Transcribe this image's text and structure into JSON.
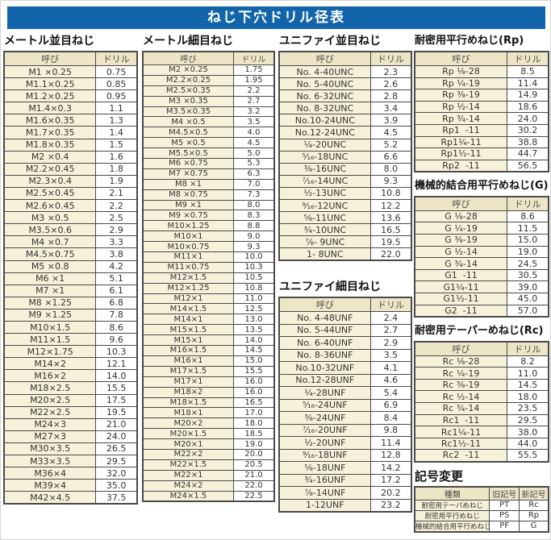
{
  "page_title": "ねじ下穴ドリル径表",
  "colors": {
    "title_bar": "#1365ab",
    "title_text": "#ffffff",
    "cell_cream": "#f6f2da",
    "header_cream": "#ece5c6",
    "cell_white": "#ffffff",
    "border": "#4a4a4a"
  },
  "sections": {
    "metric_coarse": {
      "title": "メートル並目ねじ",
      "headers": [
        "呼び",
        "ドリル"
      ],
      "rows": [
        [
          "M1 ×0.25",
          "0.75"
        ],
        [
          "M1.1×0.25",
          "0.85"
        ],
        [
          "M1.2×0.25",
          "0.95"
        ],
        [
          "M1.4×0.3",
          "1.1"
        ],
        [
          "M1.6×0.35",
          "1.3"
        ],
        [
          "M1.7×0.35",
          "1.4"
        ],
        [
          "M1.8×0.35",
          "1.5"
        ],
        [
          "M2 ×0.4",
          "1.6"
        ],
        [
          "M2.2×0.45",
          "1.8"
        ],
        [
          "M2.3×0.4",
          "1.9"
        ],
        [
          "M2.5×0.45",
          "2.1"
        ],
        [
          "M2.6×0.45",
          "2.2"
        ],
        [
          "M3 ×0.5",
          "2.5"
        ],
        [
          "M3.5×0.6",
          "2.9"
        ],
        [
          "M4 ×0.7",
          "3.3"
        ],
        [
          "M4.5×0.75",
          "3.8"
        ],
        [
          "M5 ×0.8",
          "4.2"
        ],
        [
          "M6 ×1",
          "5.1"
        ],
        [
          "M7 ×1",
          "6.1"
        ],
        [
          "M8 ×1.25",
          "6.8"
        ],
        [
          "M9 ×1.25",
          "7.8"
        ],
        [
          "M10×1.5",
          "8.6"
        ],
        [
          "M11×1.5",
          "9.6"
        ],
        [
          "M12×1.75",
          "10.3"
        ],
        [
          "M14×2",
          "12.1"
        ],
        [
          "M16×2",
          "14.0"
        ],
        [
          "M18×2.5",
          "15.5"
        ],
        [
          "M20×2.5",
          "17.5"
        ],
        [
          "M22×2.5",
          "19.5"
        ],
        [
          "M24×3",
          "21.0"
        ],
        [
          "M27×3",
          "24.0"
        ],
        [
          "M30×3.5",
          "26.5"
        ],
        [
          "M33×3.5",
          "29.5"
        ],
        [
          "M36×4",
          "32.0"
        ],
        [
          "M39×4",
          "35.0"
        ],
        [
          "M42×4.5",
          "37.5"
        ]
      ]
    },
    "metric_fine": {
      "title": "メートル細目ねじ",
      "headers": [
        "呼び",
        "ドリル"
      ],
      "rows": [
        [
          "M2 ×0.25",
          "1.75"
        ],
        [
          "M2.2×0.25",
          "1.95"
        ],
        [
          "M2.5×0.35",
          "2.2"
        ],
        [
          "M3 ×0.35",
          "2.7"
        ],
        [
          "M3.5×0.35",
          "3.2"
        ],
        [
          "M4 ×0.5",
          "3.5"
        ],
        [
          "M4.5×0.5",
          "4.0"
        ],
        [
          "M5 ×0.5",
          "4.5"
        ],
        [
          "M5.5×0.5",
          "5.0"
        ],
        [
          "M6 ×0.75",
          "5.3"
        ],
        [
          "M7 ×0.75",
          "6.3"
        ],
        [
          "M8 ×1",
          "7.0"
        ],
        [
          "M8 ×0.75",
          "7.3"
        ],
        [
          "M9 ×1",
          "8.0"
        ],
        [
          "M9 ×0.75",
          "8.3"
        ],
        [
          "M10×1.25",
          "8.8"
        ],
        [
          "M10×1",
          "9.0"
        ],
        [
          "M10×0.75",
          "9.3"
        ],
        [
          "M11×1",
          "10.0"
        ],
        [
          "M11×0.75",
          "10.3"
        ],
        [
          "M12×1.5",
          "10.5"
        ],
        [
          "M12×1.25",
          "10.8"
        ],
        [
          "M12×1",
          "11.0"
        ],
        [
          "M14×1.5",
          "12.5"
        ],
        [
          "M14×1",
          "13.0"
        ],
        [
          "M15×1.5",
          "13.5"
        ],
        [
          "M15×1",
          "14.0"
        ],
        [
          "M16×1.5",
          "14.5"
        ],
        [
          "M16×1",
          "15.0"
        ],
        [
          "M17×1.5",
          "15.5"
        ],
        [
          "M17×1",
          "16.0"
        ],
        [
          "M18×2",
          "16.0"
        ],
        [
          "M18×1.5",
          "16.5"
        ],
        [
          "M18×1",
          "17.0"
        ],
        [
          "M20×2",
          "18.0"
        ],
        [
          "M20×1.5",
          "18.5"
        ],
        [
          "M20×1",
          "19.0"
        ],
        [
          "M22×2",
          "20.0"
        ],
        [
          "M22×1.5",
          "20.5"
        ],
        [
          "M22×1",
          "21.0"
        ],
        [
          "M24×2",
          "22.0"
        ],
        [
          "M24×1.5",
          "22.5"
        ]
      ]
    },
    "unified_coarse": {
      "title": "ユニファイ並目ねじ",
      "headers": [
        "呼び",
        "ドリル"
      ],
      "rows": [
        [
          "No. 4-40UNC",
          "2.3"
        ],
        [
          "No. 5-40UNC",
          "2.6"
        ],
        [
          "No. 6-32UNC",
          "2.8"
        ],
        [
          "No. 8-32UNC",
          "3.4"
        ],
        [
          "No.10-24UNC",
          "3.9"
        ],
        [
          "No.12-24UNC",
          "4.5"
        ],
        [
          "¹⁄₄-20UNC",
          "5.2"
        ],
        [
          "⁵⁄₁₆-18UNC",
          "6.6"
        ],
        [
          "³⁄₈-16UNC",
          "8.0"
        ],
        [
          "⁷⁄₁₆-14UNC",
          "9.3"
        ],
        [
          "¹⁄₂-13UNC",
          "10.8"
        ],
        [
          "⁹⁄₁₆-12UNC",
          "12.2"
        ],
        [
          "⁵⁄₈-11UNC",
          "13.6"
        ],
        [
          "³⁄₄-10UNC",
          "16.5"
        ],
        [
          "⁷⁄₈- 9UNC",
          "19.5"
        ],
        [
          "1- 8UNC",
          "22.0"
        ]
      ]
    },
    "unified_fine": {
      "title": "ユニファイ細目ねじ",
      "headers": [
        "呼び",
        "ドリル"
      ],
      "rows": [
        [
          "No. 4-48UNF",
          "2.4"
        ],
        [
          "No. 5-44UNF",
          "2.7"
        ],
        [
          "No. 6-40UNF",
          "2.9"
        ],
        [
          "No. 8-36UNF",
          "3.5"
        ],
        [
          "No.10-32UNF",
          "4.1"
        ],
        [
          "No.12-28UNF",
          "4.6"
        ],
        [
          "¹⁄₄-28UNF",
          "5.4"
        ],
        [
          "⁵⁄₁₆-24UNF",
          "6.9"
        ],
        [
          "³⁄₈-24UNF",
          "8.4"
        ],
        [
          "⁷⁄₁₆-20UNF",
          "9.8"
        ],
        [
          "¹⁄₂-20UNF",
          "11.4"
        ],
        [
          "⁹⁄₁₆-18UNF",
          "12.8"
        ],
        [
          "⁵⁄₈-18UNF",
          "14.2"
        ],
        [
          "³⁄₄-16UNF",
          "17.2"
        ],
        [
          "⁷⁄₈-14UNF",
          "20.2"
        ],
        [
          "1-12UNF",
          "23.2"
        ]
      ]
    },
    "rp": {
      "title": "耐密用平行めねじ(Rp)",
      "headers": [
        "呼び",
        "ドリル"
      ],
      "rows": [
        [
          "Rp ¹⁄₈-28",
          "8.5"
        ],
        [
          "Rp ¹⁄₄-19",
          "11.4"
        ],
        [
          "Rp ³⁄₈-19",
          "14.9"
        ],
        [
          "Rp ¹⁄₂-14",
          "18.6"
        ],
        [
          "Rp ³⁄₄-14",
          "24.0"
        ],
        [
          "Rp1  -11",
          "30.2"
        ],
        [
          "Rp1¹⁄₄-11",
          "38.8"
        ],
        [
          "Rp1¹⁄₂-11",
          "44.7"
        ],
        [
          "Rp2  -11",
          "56.5"
        ]
      ]
    },
    "g": {
      "title": "機械的結合用平行めねじ(G)",
      "headers": [
        "呼び",
        "ドリル"
      ],
      "rows": [
        [
          "G ¹⁄₈-28",
          "8.6"
        ],
        [
          "G ¹⁄₄-19",
          "11.5"
        ],
        [
          "G ³⁄₈-19",
          "15.0"
        ],
        [
          "G ¹⁄₂-14",
          "19.0"
        ],
        [
          "G ³⁄₄-14",
          "24.5"
        ],
        [
          "G1  -11",
          "30.5"
        ],
        [
          "G1¹⁄₄-11",
          "39.0"
        ],
        [
          "G1¹⁄₂-11",
          "45.0"
        ],
        [
          "G2  -11",
          "57.0"
        ]
      ]
    },
    "rc": {
      "title": "耐密用テーパーめねじ(Rc)",
      "headers": [
        "呼び",
        "ドリル"
      ],
      "rows": [
        [
          "Rc ¹⁄₈-28",
          "8.2"
        ],
        [
          "Rc ¹⁄₄-19",
          "11.0"
        ],
        [
          "Rc ³⁄₈-19",
          "14.5"
        ],
        [
          "Rc ¹⁄₂-14",
          "18.0"
        ],
        [
          "Rc ³⁄₄-14",
          "23.5"
        ],
        [
          "Rc1  -11",
          "29.5"
        ],
        [
          "Rc1¹⁄₄-11",
          "38.0"
        ],
        [
          "Rc1¹⁄₂-11",
          "44.0"
        ],
        [
          "Rc2  -11",
          "55.5"
        ]
      ]
    },
    "symbol_change": {
      "title": "記号変更",
      "headers": [
        "種類",
        "旧記号",
        "新記号"
      ],
      "rows": [
        [
          "耐密用テーパめねじ",
          "PT",
          "Rc"
        ],
        [
          "耐密用平行めねじ",
          "PS",
          "Rp"
        ],
        [
          "機械的結合用平行めねじ",
          "PF",
          "G"
        ]
      ]
    }
  }
}
